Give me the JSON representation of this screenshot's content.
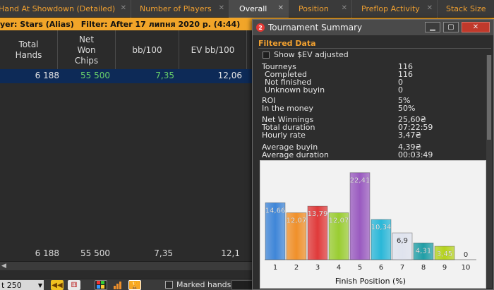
{
  "tabs": [
    {
      "label": "Hand At Showdown (Detailed)",
      "active": false
    },
    {
      "label": "Number of Players",
      "active": false
    },
    {
      "label": "Overall",
      "active": true
    },
    {
      "label": "Position",
      "active": false
    },
    {
      "label": "Preflop Activity",
      "active": false
    },
    {
      "label": "Stack Size",
      "active": false
    }
  ],
  "tab_close_glyph": "✕",
  "filter_strip": {
    "player": "yer: Stars (Alias)",
    "filter": "Filter: After 17 липня 2020 р. (4:44)"
  },
  "stats_table": {
    "headers": [
      "Total Hands",
      "Net Won Chips",
      "bb/100",
      "EV bb/100"
    ],
    "row": {
      "total_hands": "6 188",
      "net_won_chips": "55 500",
      "bb100": "7,35",
      "ev_bb100": "12,06"
    },
    "totals": {
      "total_hands": "6 188",
      "net_won_chips": "55 500",
      "bb100": "7,35",
      "ev_bb100": "12,1"
    }
  },
  "toolbar": {
    "select_value": "t 250",
    "marked_hands_label": "Marked hands",
    "icons": [
      "rewind-icon",
      "dice-icon",
      "grid-icon",
      "bar-chart-icon",
      "trophy-icon"
    ]
  },
  "summary_window": {
    "title": "Tournament Summary",
    "section_title": "Filtered Data",
    "show_ev_label": "Show $EV adjusted",
    "rows": [
      {
        "label": "Tourneys",
        "value": "116",
        "indent": false
      },
      {
        "label": "Completed",
        "value": "116",
        "indent": true
      },
      {
        "label": "Not finished",
        "value": "0",
        "indent": true
      },
      {
        "label": "Unknown buyin",
        "value": "0",
        "indent": true
      },
      {
        "label": "ROI",
        "value": "5%",
        "indent": false
      },
      {
        "label": "In the money",
        "value": "50%",
        "indent": false
      },
      {
        "label": "Net Winnings",
        "value": "25,60₴",
        "indent": false
      },
      {
        "label": "Total duration",
        "value": "07:22:59",
        "indent": false
      },
      {
        "label": "Hourly rate",
        "value": "3,47₴",
        "indent": false
      },
      {
        "label": "Average buyin",
        "value": "4,39₴",
        "indent": false
      },
      {
        "label": "Average duration",
        "value": "00:03:49",
        "indent": false
      }
    ]
  },
  "chart_data": {
    "type": "bar",
    "categories": [
      "1",
      "2",
      "3",
      "4",
      "5",
      "6",
      "7",
      "8",
      "9",
      "10"
    ],
    "values": [
      14.66,
      12.07,
      13.79,
      12.07,
      22.41,
      10.34,
      6.9,
      4.31,
      3.45,
      0
    ],
    "data_labels": [
      "14,66",
      "12,07",
      "13,79",
      "12,07",
      "22,41",
      "10,34",
      "6,9",
      "4,31",
      "3,45",
      "0"
    ],
    "colors": [
      "#3f86d8",
      "#f0902a",
      "#e03a3a",
      "#9acd32",
      "#9a5bc0",
      "#2ab7d8",
      "#dfe3ee",
      "#1f9ea6",
      "#b5d31c",
      "#cccccc"
    ],
    "title": "",
    "xlabel": "Finish Position (%)",
    "ylabel": "",
    "ylim": [
      0,
      24
    ],
    "grid": false
  }
}
